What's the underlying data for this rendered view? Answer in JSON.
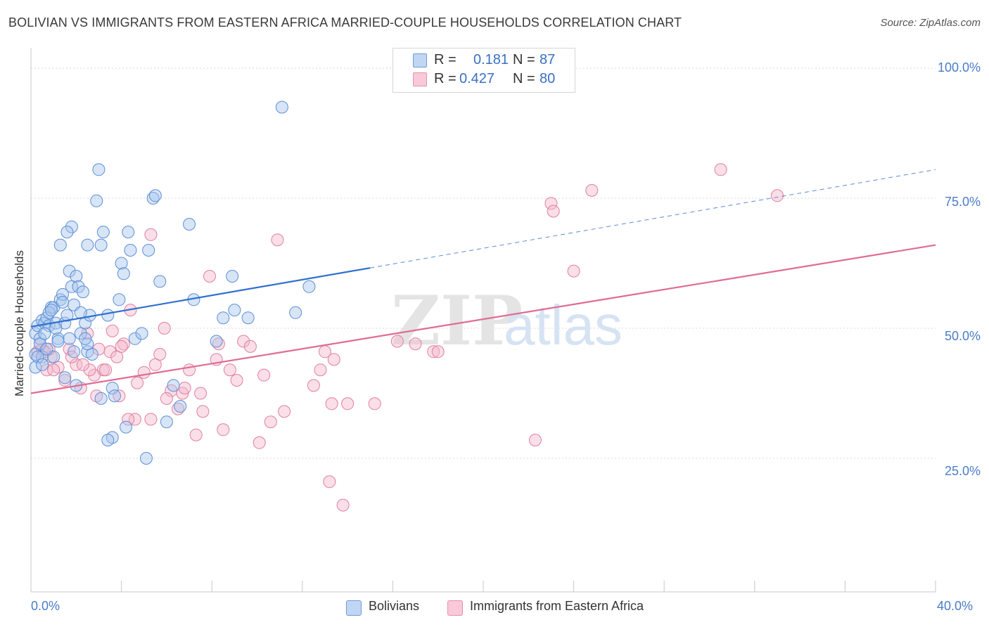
{
  "title": "BOLIVIAN VS IMMIGRANTS FROM EASTERN AFRICA MARRIED-COUPLE HOUSEHOLDS CORRELATION CHART",
  "source": "Source: ZipAtlas.com",
  "legend": {
    "r_label": "R =",
    "n_label": "N =",
    "rows": [
      {
        "r": "0.181",
        "n": "87"
      },
      {
        "r": "0.427",
        "n": "80"
      }
    ]
  },
  "bottom_legend": [
    "Bolivians",
    "Immigrants from Eastern Africa"
  ],
  "watermark": {
    "zip": "ZIP",
    "atlas": "atlas"
  },
  "colors": {
    "blue_fill": "#a9c6ee",
    "blue_stroke": "#5b8fd6",
    "blue_line": "#2f6fd0",
    "pink_fill": "#f5b9cc",
    "pink_stroke": "#e07fa0",
    "pink_line": "#e06b94",
    "tick_text": "#4a7cc9",
    "grid": "#d9d9d9"
  },
  "chart_data": {
    "type": "scatter",
    "title": "BOLIVIAN VS IMMIGRANTS FROM EASTERN AFRICA MARRIED-COUPLE HOUSEHOLDS CORRELATION CHART",
    "xlabel": "",
    "ylabel": "Married-couple Households",
    "xlim": [
      0,
      40
    ],
    "ylim": [
      0,
      100
    ],
    "x_tick_labels": [
      "0.0%",
      "40.0%"
    ],
    "y_tick_labels": [
      "25.0%",
      "50.0%",
      "75.0%",
      "100.0%"
    ],
    "y_ticks": [
      25,
      50,
      75,
      100
    ],
    "grid": true,
    "legend_position": "top-center",
    "series": [
      {
        "name": "Bolivians",
        "R": 0.181,
        "N": 87,
        "trend": {
          "x0": 0,
          "y0": 50.3,
          "x1": 15,
          "y1": 61.6,
          "dashed_to": {
            "x": 40,
            "y": 80.5
          }
        },
        "points": [
          [
            0.2,
            49
          ],
          [
            0.2,
            45
          ],
          [
            0.3,
            50.5
          ],
          [
            0.4,
            48
          ],
          [
            0.5,
            51.5
          ],
          [
            0.6,
            51
          ],
          [
            0.7,
            52
          ],
          [
            0.8,
            50.5
          ],
          [
            0.9,
            54
          ],
          [
            1.0,
            54
          ],
          [
            1.1,
            51
          ],
          [
            1.2,
            48
          ],
          [
            1.3,
            55.5
          ],
          [
            1.4,
            56.5
          ],
          [
            1.5,
            51
          ],
          [
            1.6,
            52.5
          ],
          [
            1.7,
            61
          ],
          [
            1.8,
            58
          ],
          [
            1.9,
            54.5
          ],
          [
            2.0,
            60
          ],
          [
            2.1,
            58
          ],
          [
            2.2,
            49
          ],
          [
            2.3,
            57
          ],
          [
            2.4,
            51
          ],
          [
            2.5,
            45.5
          ],
          [
            2.6,
            52.5
          ],
          [
            2.7,
            45
          ],
          [
            3.0,
            80.5
          ],
          [
            3.1,
            66
          ],
          [
            3.2,
            68.5
          ],
          [
            3.4,
            52.5
          ],
          [
            3.6,
            38.5
          ],
          [
            3.7,
            37
          ],
          [
            3.9,
            55.5
          ],
          [
            4.0,
            62.5
          ],
          [
            4.1,
            60.5
          ],
          [
            4.3,
            68.5
          ],
          [
            4.4,
            65
          ],
          [
            4.6,
            48
          ],
          [
            4.9,
            49
          ],
          [
            5.2,
            65
          ],
          [
            5.4,
            75
          ],
          [
            5.5,
            75.5
          ],
          [
            5.7,
            59
          ],
          [
            5.1,
            25
          ],
          [
            4.2,
            31
          ],
          [
            3.6,
            29
          ],
          [
            3.4,
            28.5
          ],
          [
            3.1,
            36.5
          ],
          [
            2.5,
            47
          ],
          [
            6.0,
            32
          ],
          [
            6.3,
            39
          ],
          [
            6.6,
            35
          ],
          [
            7.0,
            70
          ],
          [
            7.2,
            55.5
          ],
          [
            8.2,
            47.5
          ],
          [
            8.5,
            52
          ],
          [
            8.9,
            60
          ],
          [
            9.0,
            53.5
          ],
          [
            9.6,
            52
          ],
          [
            11.1,
            92.5
          ],
          [
            11.7,
            53
          ],
          [
            12.3,
            58
          ],
          [
            0.4,
            47
          ],
          [
            0.5,
            44.5
          ],
          [
            1.0,
            44.5
          ],
          [
            1.2,
            47.5
          ],
          [
            1.5,
            40.5
          ],
          [
            0.8,
            53
          ],
          [
            2.9,
            74.5
          ],
          [
            1.8,
            69.5
          ],
          [
            1.6,
            68.5
          ],
          [
            2.5,
            66
          ],
          [
            1.3,
            66
          ],
          [
            0.3,
            44.5
          ],
          [
            0.6,
            49
          ],
          [
            1.1,
            50
          ],
          [
            2.0,
            39
          ],
          [
            2.4,
            48
          ],
          [
            0.9,
            53.5
          ],
          [
            1.4,
            55
          ],
          [
            2.2,
            53
          ],
          [
            0.7,
            46
          ],
          [
            1.9,
            45.5
          ],
          [
            0.2,
            42.5
          ],
          [
            0.5,
            43
          ],
          [
            1.7,
            48
          ]
        ]
      },
      {
        "name": "Immigrants from Eastern Africa",
        "R": 0.427,
        "N": 80,
        "trend": {
          "x0": 0,
          "y0": 37.5,
          "x1": 40,
          "y1": 66
        },
        "points": [
          [
            0.3,
            45.5
          ],
          [
            0.5,
            46
          ],
          [
            0.7,
            42
          ],
          [
            0.9,
            44.5
          ],
          [
            1.2,
            42.5
          ],
          [
            1.5,
            40
          ],
          [
            1.7,
            46
          ],
          [
            2.0,
            43
          ],
          [
            2.2,
            38.5
          ],
          [
            2.5,
            49
          ],
          [
            2.8,
            41
          ],
          [
            3.0,
            46
          ],
          [
            3.2,
            42
          ],
          [
            3.5,
            45.5
          ],
          [
            3.8,
            44.5
          ],
          [
            4.1,
            47
          ],
          [
            4.4,
            53.5
          ],
          [
            4.7,
            39.5
          ],
          [
            5.0,
            41.5
          ],
          [
            5.3,
            68
          ],
          [
            5.5,
            43
          ],
          [
            5.7,
            45
          ],
          [
            5.9,
            50
          ],
          [
            6.2,
            38
          ],
          [
            6.5,
            34.5
          ],
          [
            6.7,
            37.5
          ],
          [
            7.0,
            42
          ],
          [
            7.3,
            29.5
          ],
          [
            7.6,
            34
          ],
          [
            7.9,
            60
          ],
          [
            8.2,
            44
          ],
          [
            8.5,
            30.5
          ],
          [
            8.8,
            42
          ],
          [
            9.1,
            40
          ],
          [
            9.4,
            47.5
          ],
          [
            9.7,
            46.5
          ],
          [
            10.1,
            28
          ],
          [
            10.3,
            41
          ],
          [
            10.6,
            32
          ],
          [
            10.9,
            67
          ],
          [
            11.2,
            34
          ],
          [
            12.5,
            39
          ],
          [
            13.0,
            45.5
          ],
          [
            13.2,
            20.5
          ],
          [
            13.4,
            44
          ],
          [
            13.8,
            16
          ],
          [
            14.0,
            35.5
          ],
          [
            15.2,
            35.5
          ],
          [
            16.2,
            47.5
          ],
          [
            17.0,
            47
          ],
          [
            17.8,
            45.5
          ],
          [
            18.0,
            45.5
          ],
          [
            22.3,
            28.5
          ],
          [
            23.0,
            74
          ],
          [
            23.1,
            72.5
          ],
          [
            24.0,
            61
          ],
          [
            24.8,
            76.5
          ],
          [
            30.5,
            80.5
          ],
          [
            33.0,
            75.5
          ],
          [
            4.6,
            32.5
          ],
          [
            4.3,
            32.5
          ],
          [
            5.3,
            32.5
          ],
          [
            4.0,
            46.5
          ],
          [
            3.3,
            42
          ],
          [
            2.6,
            42
          ],
          [
            1.0,
            42
          ],
          [
            0.8,
            46
          ],
          [
            1.8,
            44.5
          ],
          [
            2.9,
            37
          ],
          [
            3.9,
            37
          ],
          [
            6.0,
            36.5
          ],
          [
            6.8,
            38.5
          ],
          [
            7.5,
            37.5
          ],
          [
            8.3,
            47
          ],
          [
            12.8,
            42
          ],
          [
            3.6,
            49.5
          ],
          [
            2.3,
            43
          ],
          [
            13.3,
            35.5
          ],
          [
            0.4,
            47
          ],
          [
            0.6,
            45.5
          ]
        ]
      }
    ]
  }
}
